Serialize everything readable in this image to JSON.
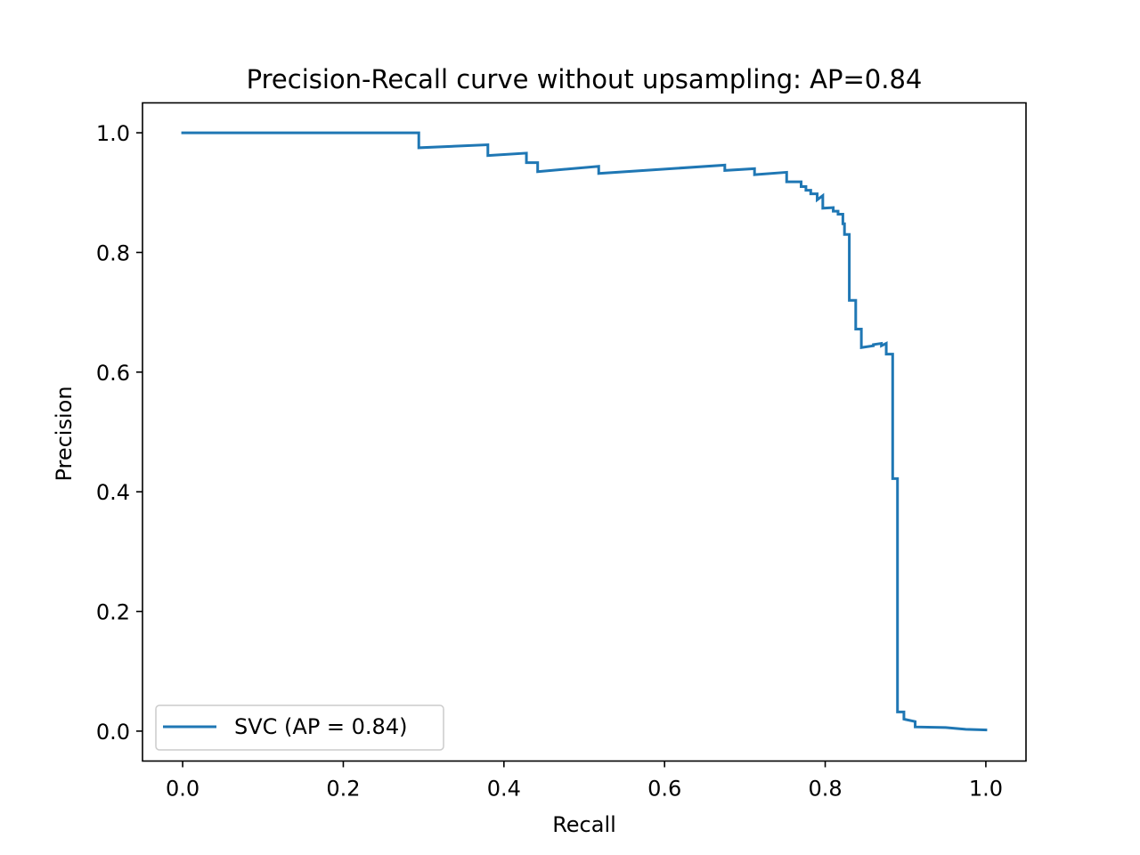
{
  "chart_data": {
    "type": "line",
    "title": "Precision-Recall curve without upsampling: AP=0.84",
    "xlabel": "Recall",
    "ylabel": "Precision",
    "xlim": [
      -0.05,
      1.05
    ],
    "ylim": [
      -0.05,
      1.05
    ],
    "xticks": [
      0.0,
      0.2,
      0.4,
      0.6,
      0.8,
      1.0
    ],
    "xtick_labels": [
      "0.0",
      "0.2",
      "0.4",
      "0.6",
      "0.8",
      "1.0"
    ],
    "yticks": [
      0.0,
      0.2,
      0.4,
      0.6,
      0.8,
      1.0
    ],
    "ytick_labels": [
      "0.0",
      "0.2",
      "0.4",
      "0.6",
      "0.8",
      "1.0"
    ],
    "grid": false,
    "legend_position": "lower-left",
    "series": [
      {
        "name": "SVC (AP = 0.84)",
        "color": "#1f77b4",
        "step": true,
        "points": [
          [
            0.0,
            1.0
          ],
          [
            0.294,
            1.0
          ],
          [
            0.294,
            0.975
          ],
          [
            0.38,
            0.98
          ],
          [
            0.38,
            0.962
          ],
          [
            0.428,
            0.966
          ],
          [
            0.428,
            0.95
          ],
          [
            0.442,
            0.95
          ],
          [
            0.442,
            0.935
          ],
          [
            0.518,
            0.944
          ],
          [
            0.518,
            0.932
          ],
          [
            0.675,
            0.946
          ],
          [
            0.675,
            0.937
          ],
          [
            0.712,
            0.94
          ],
          [
            0.712,
            0.93
          ],
          [
            0.752,
            0.934
          ],
          [
            0.752,
            0.918
          ],
          [
            0.77,
            0.918
          ],
          [
            0.77,
            0.91
          ],
          [
            0.776,
            0.91
          ],
          [
            0.776,
            0.904
          ],
          [
            0.782,
            0.904
          ],
          [
            0.782,
            0.898
          ],
          [
            0.79,
            0.898
          ],
          [
            0.79,
            0.888
          ],
          [
            0.797,
            0.895
          ],
          [
            0.797,
            0.874
          ],
          [
            0.81,
            0.875
          ],
          [
            0.81,
            0.869
          ],
          [
            0.816,
            0.869
          ],
          [
            0.816,
            0.864
          ],
          [
            0.822,
            0.864
          ],
          [
            0.822,
            0.848
          ],
          [
            0.824,
            0.848
          ],
          [
            0.824,
            0.83
          ],
          [
            0.83,
            0.83
          ],
          [
            0.83,
            0.72
          ],
          [
            0.838,
            0.72
          ],
          [
            0.838,
            0.672
          ],
          [
            0.845,
            0.672
          ],
          [
            0.845,
            0.641
          ],
          [
            0.86,
            0.644
          ],
          [
            0.86,
            0.646
          ],
          [
            0.87,
            0.648
          ],
          [
            0.87,
            0.644
          ],
          [
            0.876,
            0.648
          ],
          [
            0.876,
            0.63
          ],
          [
            0.884,
            0.63
          ],
          [
            0.884,
            0.422
          ],
          [
            0.89,
            0.422
          ],
          [
            0.89,
            0.032
          ],
          [
            0.898,
            0.032
          ],
          [
            0.898,
            0.02
          ],
          [
            0.912,
            0.016
          ],
          [
            0.912,
            0.007
          ],
          [
            0.95,
            0.006
          ],
          [
            0.975,
            0.003
          ],
          [
            1.0,
            0.002
          ]
        ]
      }
    ]
  }
}
